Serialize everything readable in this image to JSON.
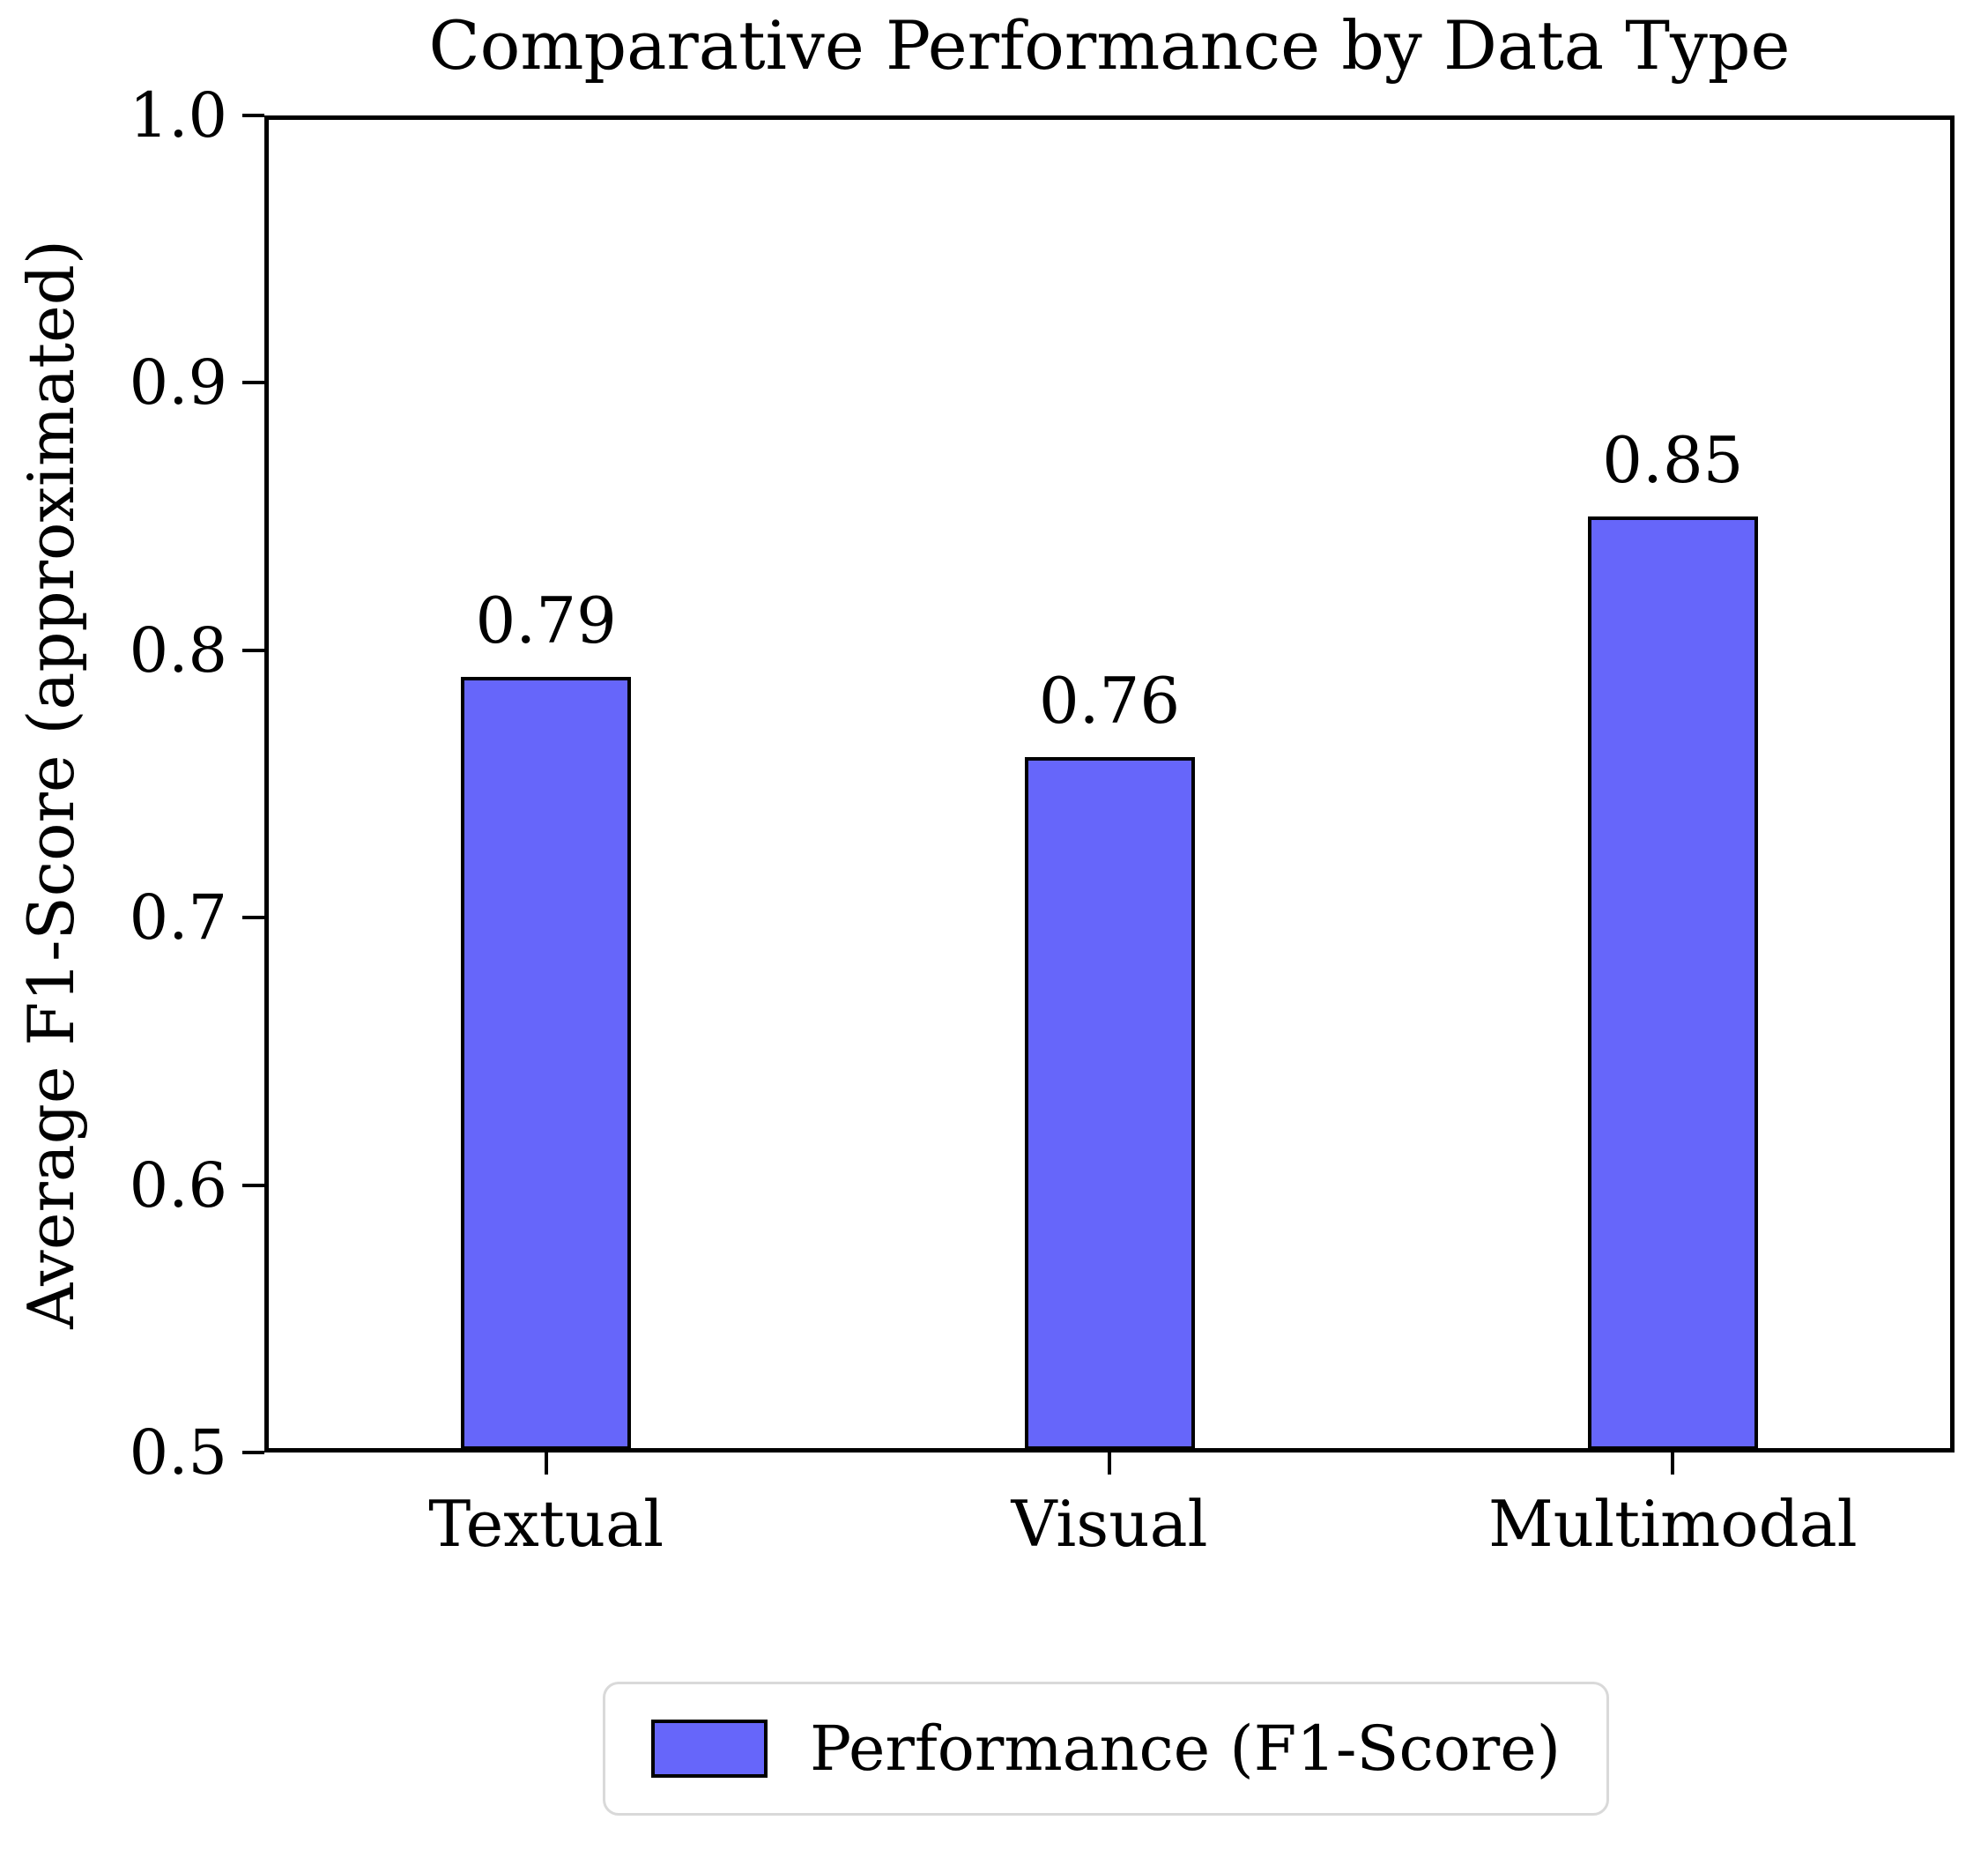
{
  "chart_data": {
    "type": "bar",
    "title": "Comparative Performance by Data Type",
    "categories": [
      "Textual",
      "Visual",
      "Multimodal"
    ],
    "values": [
      0.79,
      0.76,
      0.85
    ],
    "value_labels": [
      "0.79",
      "0.76",
      "0.85"
    ],
    "xlabel": "",
    "ylabel": "Average F1-Score (approximated)",
    "ylim": [
      0.5,
      1.0
    ],
    "yticks": [
      "0.5",
      "0.6",
      "0.7",
      "0.8",
      "0.9",
      "1.0"
    ],
    "grid": false,
    "bar_color": "#6666fa",
    "bar_edge_color": "#000000",
    "legend": {
      "position": "bottom-center",
      "entries": [
        {
          "label": "Performance (F1-Score)",
          "color": "#6666fa"
        }
      ]
    }
  }
}
